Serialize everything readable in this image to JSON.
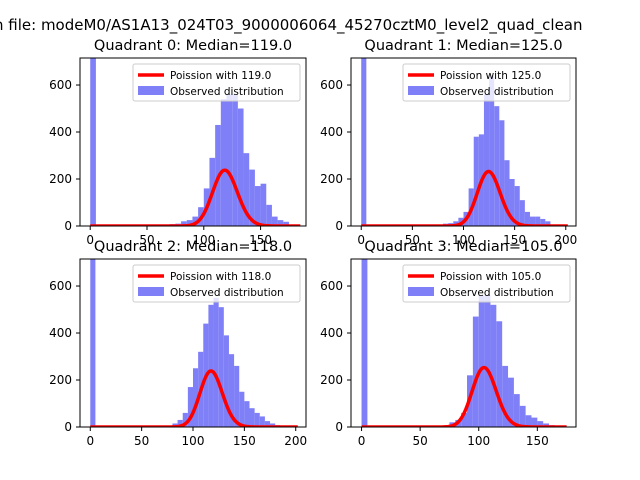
{
  "figure": {
    "suptitle": "n file: modeM0/AS1A13_024T03_9000006064_45270cztM0_level2_quad_clean"
  },
  "colors": {
    "hist": "#7f7ff7",
    "poisson": "#ff0000"
  },
  "chart_data": [
    {
      "type": "bar",
      "title": "Quadrant 0: Median=119.0",
      "xlim": [
        -9,
        190
      ],
      "ylim": [
        0,
        715
      ],
      "xticks": [
        0,
        50,
        100,
        150
      ],
      "yticks": [
        0,
        200,
        400,
        600
      ],
      "legend": [
        "Poission with 119.0",
        "Observed distribution"
      ],
      "legend_loc": "upper right",
      "hist_bin_width": 5,
      "hist_counts": [
        [
          0,
          720
        ],
        [
          55,
          3
        ],
        [
          65,
          5
        ],
        [
          70,
          8
        ],
        [
          75,
          10
        ],
        [
          80,
          20
        ],
        [
          85,
          25
        ],
        [
          90,
          40
        ],
        [
          95,
          80
        ],
        [
          100,
          160
        ],
        [
          105,
          290
        ],
        [
          110,
          430
        ],
        [
          115,
          540
        ],
        [
          120,
          560
        ],
        [
          125,
          560
        ],
        [
          130,
          500
        ],
        [
          135,
          310
        ],
        [
          140,
          240
        ],
        [
          145,
          170
        ],
        [
          150,
          180
        ],
        [
          155,
          90
        ],
        [
          160,
          40
        ],
        [
          165,
          25
        ],
        [
          170,
          18
        ],
        [
          175,
          5
        ]
      ],
      "poisson_mean": 119.0,
      "poisson_x": [
        0,
        185
      ]
    },
    {
      "type": "bar",
      "title": "Quadrant 1: Median=125.0",
      "xlim": [
        -10,
        210
      ],
      "ylim": [
        0,
        715
      ],
      "xticks": [
        0,
        50,
        100,
        150,
        200
      ],
      "yticks": [
        0,
        200,
        400,
        600
      ],
      "legend": [
        "Poission with 125.0",
        "Observed distribution"
      ],
      "legend_loc": "upper right",
      "hist_bin_width": 5,
      "hist_counts": [
        [
          0,
          720
        ],
        [
          60,
          2
        ],
        [
          70,
          5
        ],
        [
          80,
          10
        ],
        [
          85,
          12
        ],
        [
          90,
          20
        ],
        [
          95,
          35
        ],
        [
          100,
          60
        ],
        [
          105,
          160
        ],
        [
          110,
          380
        ],
        [
          115,
          390
        ],
        [
          120,
          560
        ],
        [
          125,
          640
        ],
        [
          130,
          510
        ],
        [
          135,
          450
        ],
        [
          140,
          280
        ],
        [
          145,
          200
        ],
        [
          150,
          170
        ],
        [
          155,
          110
        ],
        [
          160,
          60
        ],
        [
          165,
          40
        ],
        [
          170,
          40
        ],
        [
          175,
          30
        ],
        [
          180,
          20
        ],
        [
          185,
          5
        ],
        [
          190,
          3
        ],
        [
          195,
          2
        ]
      ],
      "poisson_mean": 125.0,
      "poisson_x": [
        0,
        202
      ]
    },
    {
      "type": "bar",
      "title": "Quadrant 2: Median=118.0",
      "xlim": [
        -10,
        210
      ],
      "ylim": [
        0,
        715
      ],
      "xticks": [
        0,
        50,
        100,
        150,
        200
      ],
      "yticks": [
        0,
        200,
        400,
        600
      ],
      "legend": [
        "Poission with 118.0",
        "Observed distribution"
      ],
      "legend_loc": "upper right",
      "hist_bin_width": 5,
      "hist_counts": [
        [
          0,
          720
        ],
        [
          75,
          5
        ],
        [
          80,
          15
        ],
        [
          85,
          30
        ],
        [
          90,
          60
        ],
        [
          95,
          170
        ],
        [
          100,
          250
        ],
        [
          105,
          320
        ],
        [
          110,
          440
        ],
        [
          115,
          520
        ],
        [
          120,
          550
        ],
        [
          125,
          510
        ],
        [
          130,
          390
        ],
        [
          135,
          310
        ],
        [
          140,
          260
        ],
        [
          145,
          150
        ],
        [
          150,
          110
        ],
        [
          155,
          80
        ],
        [
          160,
          60
        ],
        [
          165,
          45
        ],
        [
          170,
          25
        ],
        [
          175,
          15
        ],
        [
          180,
          8
        ],
        [
          185,
          5
        ],
        [
          190,
          3
        ]
      ],
      "poisson_mean": 118.0,
      "poisson_x": [
        0,
        202
      ]
    },
    {
      "type": "bar",
      "title": "Quadrant 3: Median=105.0",
      "xlim": [
        -9,
        183
      ],
      "ylim": [
        0,
        715
      ],
      "xticks": [
        0,
        50,
        100,
        150
      ],
      "yticks": [
        0,
        200,
        400,
        600
      ],
      "legend": [
        "Poission with 105.0",
        "Observed distribution"
      ],
      "legend_loc": "upper right",
      "hist_bin_width": 5,
      "hist_counts": [
        [
          0,
          720
        ],
        [
          70,
          5
        ],
        [
          75,
          20
        ],
        [
          80,
          30
        ],
        [
          85,
          60
        ],
        [
          90,
          220
        ],
        [
          95,
          470
        ],
        [
          100,
          560
        ],
        [
          105,
          560
        ],
        [
          110,
          520
        ],
        [
          115,
          450
        ],
        [
          120,
          260
        ],
        [
          125,
          210
        ],
        [
          130,
          140
        ],
        [
          135,
          90
        ],
        [
          140,
          50
        ],
        [
          145,
          40
        ],
        [
          150,
          25
        ],
        [
          155,
          15
        ],
        [
          160,
          8
        ],
        [
          165,
          5
        ]
      ],
      "poisson_mean": 105.0,
      "poisson_x": [
        0,
        175
      ]
    }
  ]
}
